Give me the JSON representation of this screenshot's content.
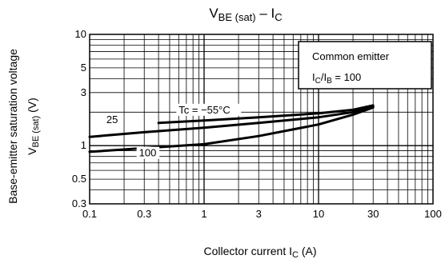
{
  "chart_data": {
    "type": "line",
    "title_main": "V",
    "title_main_sub": "BE (sat)",
    "title_rest": " – I",
    "title_rest_sub": "C",
    "xlabel": "Collector current   I",
    "xlabel_sub": "C",
    "xlabel_unit": "   (A)",
    "ylabel_line1": "Base-emitter saturation voltage",
    "ylabel_main": "V",
    "ylabel_sub": "BE (sat)",
    "ylabel_unit": "     (V)",
    "x_scale": "log",
    "y_scale": "log",
    "xlim": [
      0.1,
      100
    ],
    "ylim": [
      0.3,
      10
    ],
    "x_ticks": [
      {
        "value": 0.1,
        "label": "0.1"
      },
      {
        "value": 0.3,
        "label": "0.3"
      },
      {
        "value": 1,
        "label": "1"
      },
      {
        "value": 3,
        "label": "3"
      },
      {
        "value": 10,
        "label": "10"
      },
      {
        "value": 30,
        "label": "30"
      },
      {
        "value": 100,
        "label": "100"
      }
    ],
    "y_ticks": [
      {
        "value": 0.3,
        "label": "0.3"
      },
      {
        "value": 0.5,
        "label": "0.5"
      },
      {
        "value": 1,
        "label": "1"
      },
      {
        "value": 3,
        "label": "3"
      },
      {
        "value": 5,
        "label": "5"
      },
      {
        "value": 10,
        "label": "10"
      }
    ],
    "grid": true,
    "legend_box": {
      "line1": "Common emitter",
      "line2_main": "I",
      "line2_sub1": "C",
      "line2_mid": "/I",
      "line2_sub2": "B",
      "line2_rest": " = 100"
    },
    "series": [
      {
        "name": "Tc = −55°C",
        "x": [
          0.4,
          1,
          3,
          10,
          20,
          30
        ],
        "y": [
          1.6,
          1.68,
          1.8,
          1.95,
          2.1,
          2.3
        ],
        "label_x": 0.6,
        "label_y": 1.95
      },
      {
        "name": "25",
        "x": [
          0.1,
          0.3,
          1,
          3,
          10,
          20,
          30
        ],
        "y": [
          1.2,
          1.32,
          1.45,
          1.6,
          1.8,
          2.0,
          2.25
        ],
        "label_x": 0.14,
        "label_y": 1.6
      },
      {
        "name": "100",
        "x": [
          0.1,
          0.3,
          1,
          3,
          10,
          20,
          30
        ],
        "y": [
          0.88,
          0.95,
          1.03,
          1.22,
          1.55,
          1.9,
          2.2
        ],
        "label_x": 0.27,
        "label_y": 0.8
      }
    ]
  }
}
